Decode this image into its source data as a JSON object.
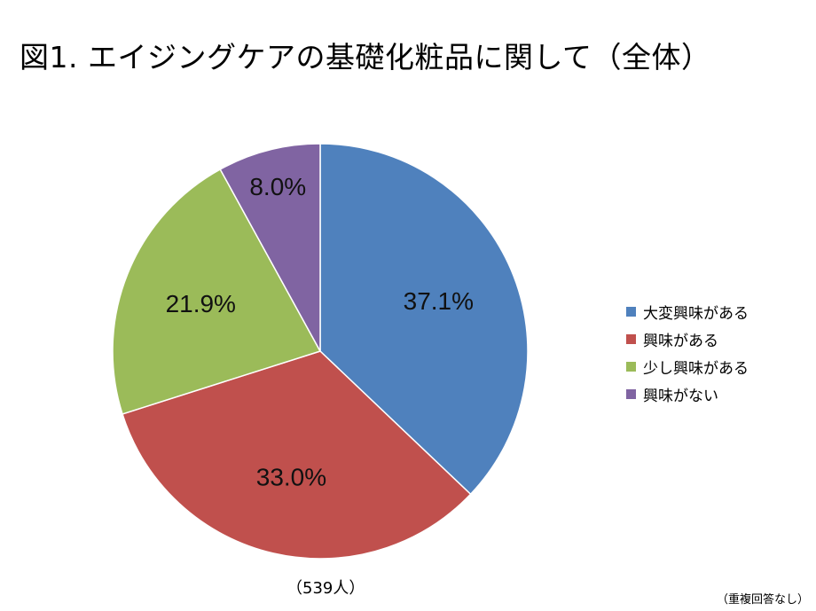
{
  "title": "図1. エイジングケアの基礎化粧品に関して（全体）",
  "sample_size": "（539人）",
  "note": "（重複回答なし）",
  "legend": [
    {
      "label": "大変興味がある",
      "color": "#4F81BD"
    },
    {
      "label": "興味がある",
      "color": "#C0504D"
    },
    {
      "label": "少し興味がある",
      "color": "#9BBB59"
    },
    {
      "label": "興味がない",
      "color": "#8064A2"
    }
  ],
  "chart_data": {
    "type": "pie",
    "title": "図1. エイジングケアの基礎化粧品に関して（全体）",
    "categories": [
      "大変興味がある",
      "興味がある",
      "少し興味がある",
      "興味がない"
    ],
    "values": [
      37.1,
      33.0,
      21.9,
      8.0
    ],
    "labels": [
      "37.1%",
      "33.0%",
      "21.9%",
      "8.0%"
    ],
    "colors": [
      "#4F81BD",
      "#C0504D",
      "#9BBB59",
      "#8064A2"
    ],
    "start_angle": "12 o'clock, clockwise",
    "legend_position": "right",
    "annotations": [
      "（539人）",
      "（重複回答なし）"
    ]
  }
}
